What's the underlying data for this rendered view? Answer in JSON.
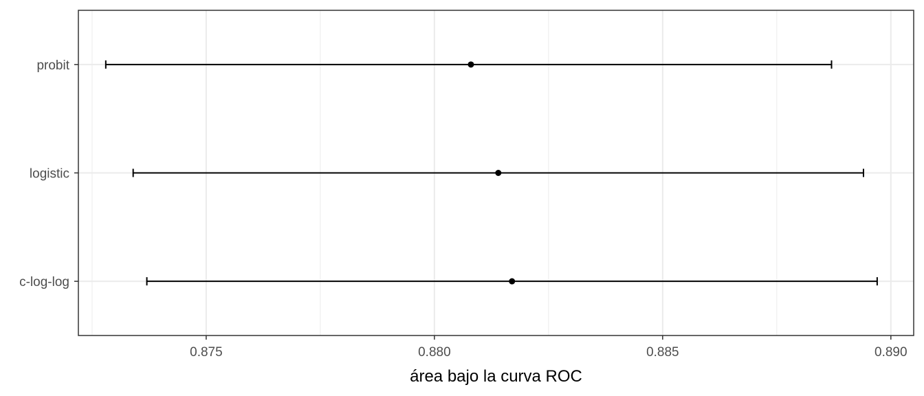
{
  "chart_data": {
    "type": "errorbar",
    "xlabel": "área bajo la curva ROC",
    "ylabel": "",
    "title": "",
    "xlim": [
      0.8722,
      0.8905
    ],
    "x_ticks": [
      0.875,
      0.88,
      0.885,
      0.89
    ],
    "x_tick_labels": [
      "0.875",
      "0.880",
      "0.885",
      "0.890"
    ],
    "x_minor_ticks": [
      0.8725,
      0.8775,
      0.8825,
      0.8875
    ],
    "categories": [
      "probit",
      "logistic",
      "c-log-log"
    ],
    "points": [
      {
        "label": "probit",
        "estimate": 0.8808,
        "lower": 0.8728,
        "upper": 0.8887
      },
      {
        "label": "logistic",
        "estimate": 0.8814,
        "lower": 0.8734,
        "upper": 0.8894
      },
      {
        "label": "c-log-log",
        "estimate": 0.8817,
        "lower": 0.8737,
        "upper": 0.8897
      }
    ],
    "grid": true,
    "legend": "none",
    "colors": {
      "marks": "#000000",
      "grid": "#ebebeb",
      "panel_border": "#333333",
      "tick_text": "#4d4d4d"
    }
  }
}
